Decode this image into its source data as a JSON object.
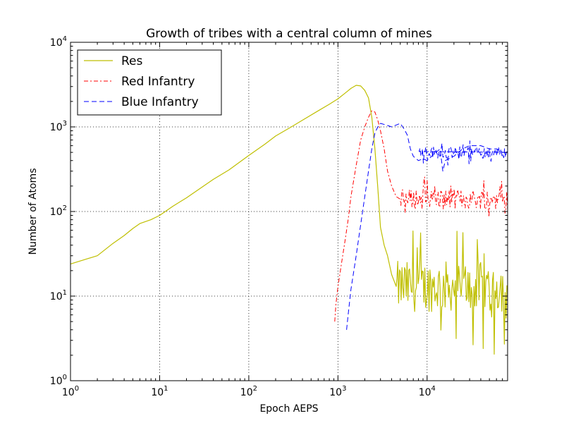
{
  "chart_data": {
    "type": "line",
    "title": "Growth of tribes with a central column of mines",
    "xlabel": "Epoch AEPS",
    "ylabel": "Number of Atoms",
    "xscale": "log",
    "yscale": "log",
    "xlim": [
      1,
      80000
    ],
    "ylim": [
      1,
      10000
    ],
    "grid": true,
    "legend_position": "top-left",
    "x_ticks": [
      {
        "value": 1,
        "base": "10",
        "exp": "0"
      },
      {
        "value": 10,
        "base": "10",
        "exp": "1"
      },
      {
        "value": 100,
        "base": "10",
        "exp": "2"
      },
      {
        "value": 1000,
        "base": "10",
        "exp": "3"
      },
      {
        "value": 10000,
        "base": "10",
        "exp": "4"
      }
    ],
    "y_ticks": [
      {
        "value": 1,
        "base": "10",
        "exp": "0"
      },
      {
        "value": 10,
        "base": "10",
        "exp": "1"
      },
      {
        "value": 100,
        "base": "10",
        "exp": "2"
      },
      {
        "value": 1000,
        "base": "10",
        "exp": "3"
      },
      {
        "value": 10000,
        "base": "10",
        "exp": "4"
      }
    ],
    "series": [
      {
        "name": "Res",
        "color": "#bfbf00",
        "style": "solid",
        "points": [
          [
            1,
            24
          ],
          [
            2,
            30
          ],
          [
            3,
            42
          ],
          [
            4,
            52
          ],
          [
            5,
            63
          ],
          [
            6,
            72
          ],
          [
            8,
            80
          ],
          [
            10,
            90
          ],
          [
            14,
            115
          ],
          [
            20,
            145
          ],
          [
            30,
            195
          ],
          [
            40,
            240
          ],
          [
            60,
            310
          ],
          [
            100,
            460
          ],
          [
            150,
            620
          ],
          [
            200,
            780
          ],
          [
            300,
            1000
          ],
          [
            400,
            1200
          ],
          [
            600,
            1550
          ],
          [
            800,
            1850
          ],
          [
            1000,
            2150
          ],
          [
            1200,
            2500
          ],
          [
            1400,
            2850
          ],
          [
            1600,
            3100
          ],
          [
            1800,
            3050
          ],
          [
            2000,
            2700
          ],
          [
            2200,
            2200
          ],
          [
            2400,
            1300
          ],
          [
            2600,
            550
          ],
          [
            2800,
            190
          ],
          [
            3000,
            65
          ],
          [
            3300,
            40
          ],
          [
            3600,
            30
          ],
          [
            4000,
            18
          ],
          [
            4500,
            13
          ]
        ],
        "noise": {
          "x_start": 4500,
          "x_end": 80000,
          "y_base": 13,
          "y_amplitude": 0.3,
          "dips_to": 2
        },
        "stroke_width": 1.2
      },
      {
        "name": "Red Infantry",
        "color": "#ff0000",
        "style": "dashdot",
        "points": [
          [
            920,
            5
          ],
          [
            950,
            8
          ],
          [
            1000,
            13
          ],
          [
            1100,
            25
          ],
          [
            1200,
            45
          ],
          [
            1300,
            80
          ],
          [
            1400,
            150
          ],
          [
            1600,
            350
          ],
          [
            1800,
            700
          ],
          [
            2000,
            1000
          ],
          [
            2200,
            1300
          ],
          [
            2400,
            1550
          ],
          [
            2600,
            1500
          ],
          [
            2800,
            1200
          ],
          [
            3000,
            900
          ],
          [
            3300,
            550
          ],
          [
            3600,
            300
          ],
          [
            4000,
            200
          ],
          [
            4500,
            150
          ],
          [
            5000,
            140
          ]
        ],
        "noise": {
          "x_start": 5000,
          "x_end": 80000,
          "y_base": 140,
          "y_amplitude": 0.12,
          "dips_to": 80
        },
        "stroke_width": 1
      },
      {
        "name": "Blue Infantry",
        "color": "#0000ff",
        "style": "dashed",
        "points": [
          [
            1250,
            4
          ],
          [
            1300,
            6
          ],
          [
            1400,
            12
          ],
          [
            1600,
            30
          ],
          [
            1800,
            70
          ],
          [
            2000,
            150
          ],
          [
            2200,
            300
          ],
          [
            2400,
            550
          ],
          [
            2600,
            850
          ],
          [
            2800,
            1000
          ],
          [
            3000,
            1100
          ],
          [
            3500,
            1050
          ],
          [
            4000,
            1000
          ],
          [
            5000,
            1100
          ],
          [
            5500,
            950
          ],
          [
            6000,
            800
          ],
          [
            6500,
            550
          ],
          [
            7000,
            450
          ],
          [
            8000,
            400
          ],
          [
            9000,
            420
          ],
          [
            10000,
            400
          ],
          [
            12000,
            480
          ],
          [
            14000,
            550
          ],
          [
            15000,
            300
          ],
          [
            16000,
            400
          ],
          [
            20000,
            450
          ],
          [
            25000,
            550
          ],
          [
            30000,
            600
          ],
          [
            40000,
            600
          ],
          [
            50000,
            550
          ],
          [
            60000,
            550
          ],
          [
            70000,
            500
          ],
          [
            80000,
            500
          ]
        ],
        "noise": {
          "x_start": 8000,
          "x_end": 80000,
          "y_base": 500,
          "y_amplitude": 0.07,
          "dips_to": 350
        },
        "stroke_width": 1
      }
    ]
  }
}
